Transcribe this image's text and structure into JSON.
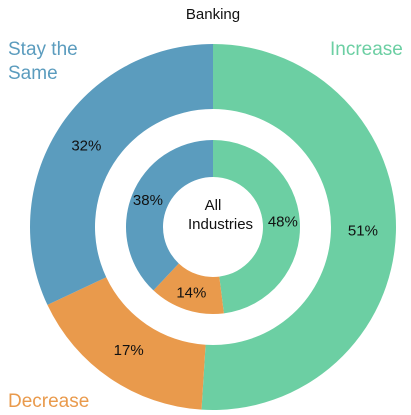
{
  "chart_data": {
    "type": "donut",
    "categories": [
      "Increase",
      "Decrease",
      "Stay the Same"
    ],
    "colors": [
      "#6ccfa3",
      "#e99a4c",
      "#5b9cbe"
    ],
    "series": [
      {
        "name": "Banking",
        "values": [
          51,
          17,
          32
        ],
        "value_labels": [
          "51%",
          "17%",
          "32%"
        ]
      },
      {
        "name": "All Industries",
        "values": [
          48,
          14,
          38
        ],
        "value_labels": [
          "48%",
          "14%",
          "38%"
        ]
      }
    ]
  }
}
